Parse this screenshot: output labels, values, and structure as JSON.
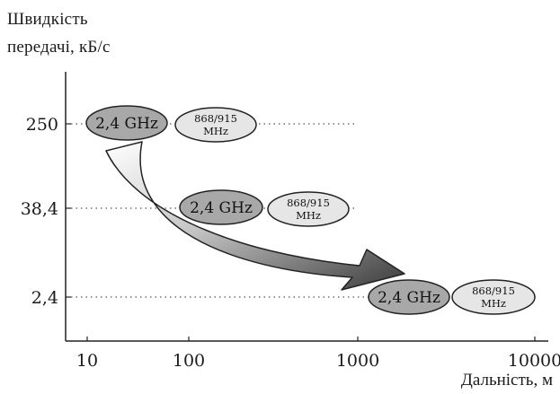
{
  "axes": {
    "y_title_line1": "Швидкість",
    "y_title_line2": "передачі, кБ/с",
    "x_title": "Дальність, м",
    "y_ticks": [
      "250",
      "38,4",
      "2,4"
    ],
    "x_ticks": [
      "10",
      "100",
      "1000",
      "10000"
    ],
    "x_scale": "log"
  },
  "rows": [
    {
      "rate": "250",
      "bubbles": [
        {
          "label": "2,4 GHz",
          "kind": "dark"
        },
        {
          "label_line1": "868/915",
          "label_line2": "MHz",
          "kind": "light"
        }
      ]
    },
    {
      "rate": "38,4",
      "bubbles": [
        {
          "label": "2,4 GHz",
          "kind": "dark"
        },
        {
          "label_line1": "868/915",
          "label_line2": "MHz",
          "kind": "light"
        }
      ]
    },
    {
      "rate": "2,4",
      "bubbles": [
        {
          "label": "2,4 GHz",
          "kind": "dark"
        },
        {
          "label_line1": "868/915",
          "label_line2": "MHz",
          "kind": "light"
        }
      ]
    }
  ],
  "colors": {
    "dark_bubble": "#a8a8a8",
    "light_bubble": "#e6e6e6",
    "outline": "#222222",
    "dotted": "#555555"
  }
}
